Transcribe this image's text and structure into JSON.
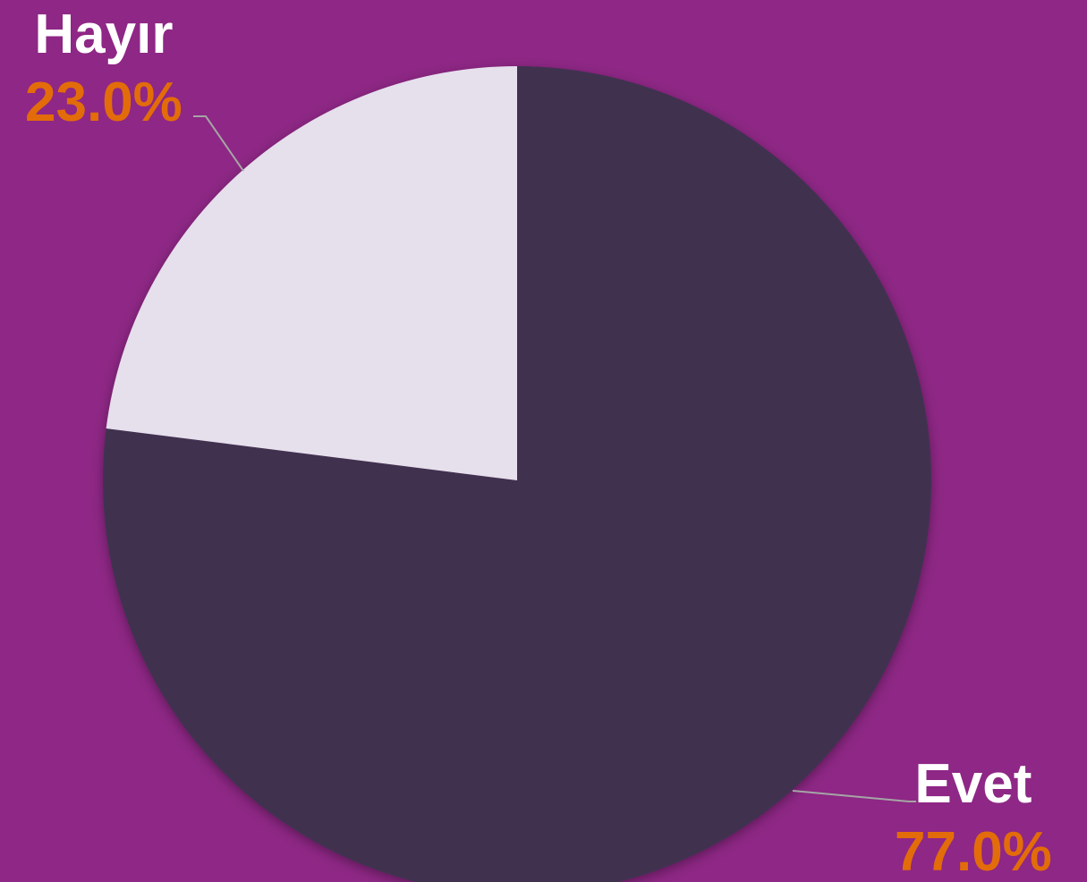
{
  "chart_data": {
    "type": "pie",
    "categories": [
      "Evet",
      "Hayır"
    ],
    "values": [
      77.0,
      23.0
    ],
    "percent_labels": [
      "77.0%",
      "23.0%"
    ],
    "start_angle_deg": 0,
    "direction": "clockwise",
    "legend": "none"
  },
  "colors": {
    "background": "#8e2785",
    "slice_evet": "#3f3150",
    "slice_hayir": "#e6dfec",
    "category_label": "#ffffff",
    "percent_label": "#e36c0a",
    "leader_line": "#a5a5a5"
  }
}
